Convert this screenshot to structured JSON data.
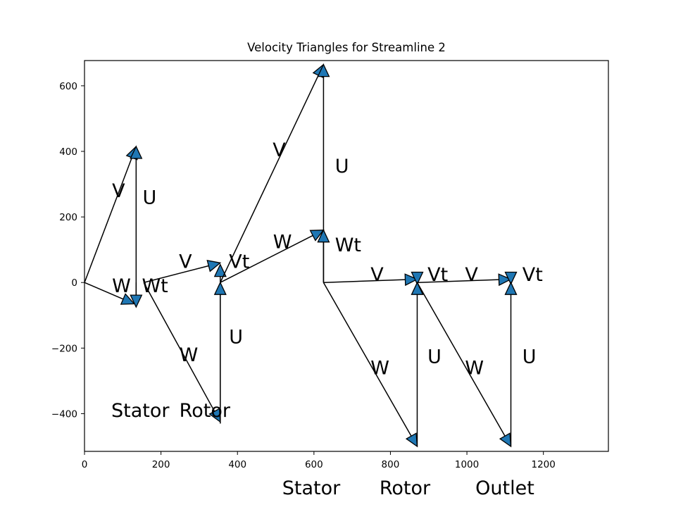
{
  "chart_data": {
    "type": "vector-diagram",
    "title": "Velocity Triangles for Streamline 2",
    "xlabel": "",
    "ylabel": "",
    "xlim": [
      0,
      1370
    ],
    "ylim": [
      -515,
      677
    ],
    "grid": false,
    "legend": "none",
    "x_ticks": [
      0,
      200,
      400,
      600,
      800,
      1000,
      1200
    ],
    "y_ticks": [
      -400,
      -200,
      0,
      200,
      400,
      600
    ],
    "y_tick_labels": [
      "−400",
      "−200",
      "0",
      "200",
      "400",
      "600"
    ],
    "x_tick_labels": [
      "0",
      "200",
      "400",
      "600",
      "800",
      "1000",
      "1200"
    ],
    "vectors": [
      {
        "name": "V",
        "from": [
          0,
          0
        ],
        "to": [
          135,
          415
        ]
      },
      {
        "name": "U",
        "from": [
          135,
          -60
        ],
        "to": [
          135,
          415
        ]
      },
      {
        "name": "W",
        "from": [
          0,
          0
        ],
        "to": [
          130,
          -65
        ]
      },
      {
        "name": "Wt",
        "from": [
          135,
          0
        ],
        "to": [
          135,
          -75
        ]
      },
      {
        "name": "V",
        "from": [
          155,
          0
        ],
        "to": [
          355,
          60
        ]
      },
      {
        "name": "Vt",
        "from": [
          355,
          -430
        ],
        "to": [
          355,
          55
        ]
      },
      {
        "name": "W",
        "from": [
          155,
          0
        ],
        "to": [
          355,
          -425
        ]
      },
      {
        "name": "U",
        "from": [
          355,
          -430
        ],
        "to": [
          355,
          0
        ]
      },
      {
        "name": "V",
        "from": [
          355,
          0
        ],
        "to": [
          625,
          665
        ]
      },
      {
        "name": "U",
        "from": [
          625,
          0
        ],
        "to": [
          625,
          665
        ]
      },
      {
        "name": "W",
        "from": [
          355,
          0
        ],
        "to": [
          625,
          160
        ]
      },
      {
        "name": "Wt",
        "from": [
          625,
          0
        ],
        "to": [
          625,
          160
        ]
      },
      {
        "name": "V",
        "from": [
          625,
          0
        ],
        "to": [
          870,
          10
        ]
      },
      {
        "name": "Vt",
        "from": [
          870,
          0
        ],
        "to": [
          870,
          -5
        ]
      },
      {
        "name": "W",
        "from": [
          625,
          0
        ],
        "to": [
          870,
          -500
        ]
      },
      {
        "name": "U",
        "from": [
          870,
          -500
        ],
        "to": [
          870,
          0
        ]
      },
      {
        "name": "V",
        "from": [
          870,
          0
        ],
        "to": [
          1115,
          10
        ]
      },
      {
        "name": "Vt",
        "from": [
          1115,
          0
        ],
        "to": [
          1115,
          -5
        ]
      },
      {
        "name": "W",
        "from": [
          870,
          0
        ],
        "to": [
          1115,
          -500
        ]
      },
      {
        "name": "U",
        "from": [
          1115,
          -500
        ],
        "to": [
          1115,
          0
        ]
      }
    ],
    "labels": [
      {
        "text": "V",
        "x": 72,
        "y": 260
      },
      {
        "text": "U",
        "x": 152,
        "y": 240
      },
      {
        "text": "W",
        "x": 72,
        "y": -30
      },
      {
        "text": "Wt",
        "x": 150,
        "y": -30
      },
      {
        "text": "V",
        "x": 247,
        "y": 45
      },
      {
        "text": "Vt",
        "x": 378,
        "y": 45
      },
      {
        "text": "W",
        "x": 248,
        "y": -240
      },
      {
        "text": "U",
        "x": 378,
        "y": -185
      },
      {
        "text": "V",
        "x": 492,
        "y": 385
      },
      {
        "text": "U",
        "x": 655,
        "y": 335
      },
      {
        "text": "W",
        "x": 493,
        "y": 105
      },
      {
        "text": "Wt",
        "x": 655,
        "y": 95
      },
      {
        "text": "V",
        "x": 748,
        "y": 5
      },
      {
        "text": "Vt",
        "x": 897,
        "y": 5
      },
      {
        "text": "W",
        "x": 748,
        "y": -280
      },
      {
        "text": "U",
        "x": 897,
        "y": -245
      },
      {
        "text": "V",
        "x": 995,
        "y": 5
      },
      {
        "text": "Vt",
        "x": 1145,
        "y": 5
      },
      {
        "text": "W",
        "x": 995,
        "y": -280
      },
      {
        "text": "U",
        "x": 1145,
        "y": -245
      },
      {
        "text": "Stator",
        "x": 70,
        "y": -410
      },
      {
        "text": "Rotor",
        "x": 248,
        "y": -410
      }
    ],
    "stage_labels": [
      "Stator",
      "Rotor",
      "Outlet"
    ]
  }
}
